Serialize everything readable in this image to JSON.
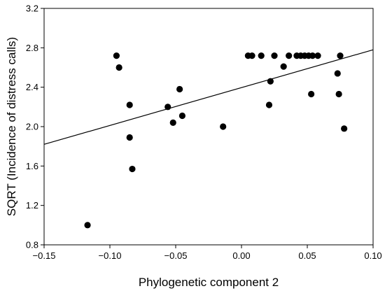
{
  "chart_data": {
    "type": "scatter",
    "xlabel": "Phylogenetic component 2",
    "ylabel": "SQRT (Incidence of distress calls)",
    "xlim": [
      -0.15,
      0.1
    ],
    "ylim": [
      0.8,
      3.2
    ],
    "grid": false,
    "x_ticks": [
      "−0.15",
      "−0.10",
      "−0.05",
      "0.00",
      "0.05",
      "0.10"
    ],
    "x_tick_values": [
      -0.15,
      -0.1,
      -0.05,
      0.0,
      0.05,
      0.1
    ],
    "y_ticks": [
      "0.8",
      "1.2",
      "1.6",
      "2.0",
      "2.4",
      "2.8",
      "3.2"
    ],
    "y_tick_values": [
      0.8,
      1.2,
      1.6,
      2.0,
      2.4,
      2.8,
      3.2
    ],
    "point_color": "#000000",
    "points": [
      {
        "x": -0.117,
        "y": 1.0
      },
      {
        "x": -0.095,
        "y": 2.72
      },
      {
        "x": -0.093,
        "y": 2.6
      },
      {
        "x": -0.085,
        "y": 2.22
      },
      {
        "x": -0.085,
        "y": 1.89
      },
      {
        "x": -0.083,
        "y": 1.57
      },
      {
        "x": -0.056,
        "y": 2.2
      },
      {
        "x": -0.052,
        "y": 2.04
      },
      {
        "x": -0.047,
        "y": 2.38
      },
      {
        "x": -0.045,
        "y": 2.11
      },
      {
        "x": -0.014,
        "y": 2.0
      },
      {
        "x": 0.005,
        "y": 2.72
      },
      {
        "x": 0.008,
        "y": 2.72
      },
      {
        "x": 0.015,
        "y": 2.72
      },
      {
        "x": 0.021,
        "y": 2.22
      },
      {
        "x": 0.022,
        "y": 2.46
      },
      {
        "x": 0.025,
        "y": 2.72
      },
      {
        "x": 0.032,
        "y": 2.61
      },
      {
        "x": 0.036,
        "y": 2.72
      },
      {
        "x": 0.042,
        "y": 2.72
      },
      {
        "x": 0.045,
        "y": 2.72
      },
      {
        "x": 0.048,
        "y": 2.72
      },
      {
        "x": 0.051,
        "y": 2.72
      },
      {
        "x": 0.053,
        "y": 2.33
      },
      {
        "x": 0.054,
        "y": 2.72
      },
      {
        "x": 0.058,
        "y": 2.72
      },
      {
        "x": 0.073,
        "y": 2.54
      },
      {
        "x": 0.074,
        "y": 2.33
      },
      {
        "x": 0.075,
        "y": 2.72
      },
      {
        "x": 0.078,
        "y": 1.98
      }
    ],
    "trendline": {
      "x": [
        -0.15,
        0.1
      ],
      "y": [
        1.82,
        2.78
      ]
    }
  }
}
